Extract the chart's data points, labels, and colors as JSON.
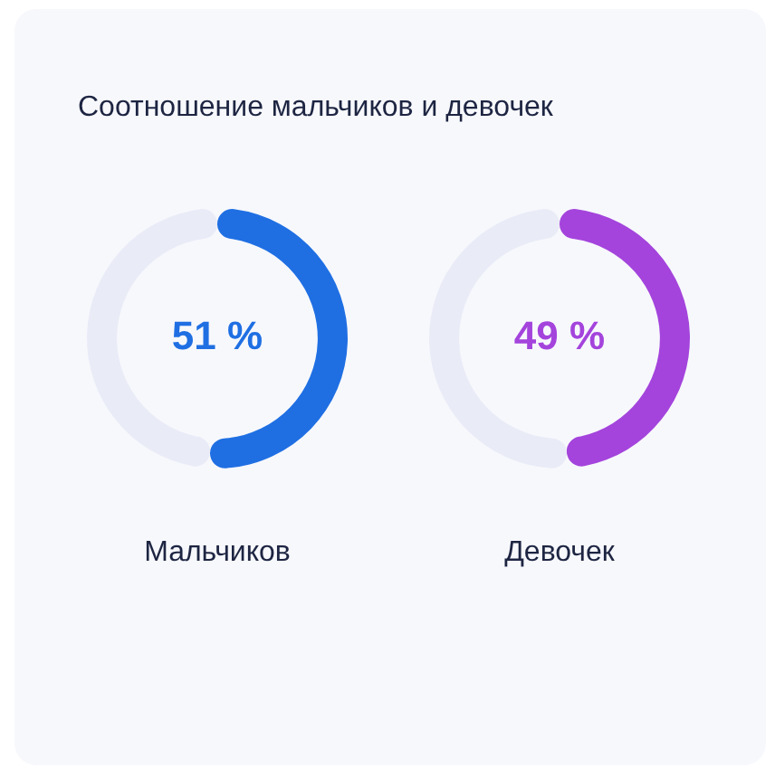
{
  "chart_data": [
    {
      "type": "donut",
      "title": "Соотношение мальчиков и девочек",
      "categories": [
        "Мальчиков",
        null
      ],
      "values": [
        51,
        49
      ],
      "colors": [
        "#1f6fe3",
        "#e9ebf7"
      ],
      "value_labels": [
        "51 %",
        null
      ]
    },
    {
      "type": "donut",
      "categories": [
        "Девочек",
        null
      ],
      "values": [
        49,
        51
      ],
      "colors": [
        "#a444dc",
        "#e9ebf7"
      ],
      "value_labels": [
        "49 %",
        null
      ]
    }
  ]
}
